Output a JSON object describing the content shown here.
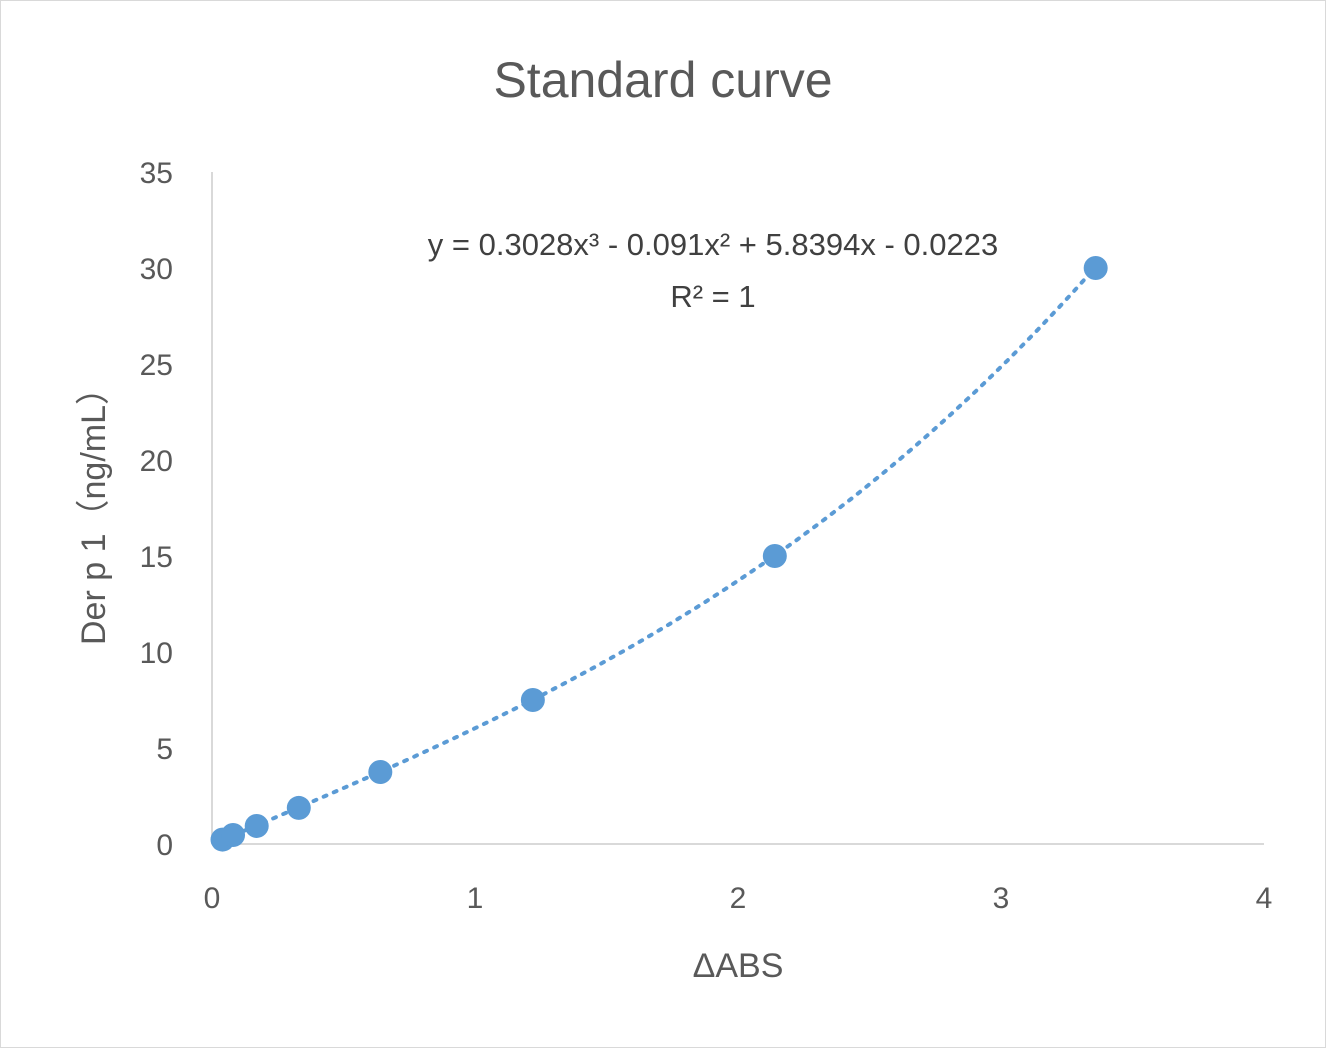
{
  "chart_data": {
    "type": "scatter",
    "title": "Standard curve",
    "xlabel": "ΔABS",
    "ylabel": "Der p 1（ng/mL）",
    "xlim": [
      0,
      4
    ],
    "ylim": [
      0,
      35
    ],
    "x_ticks": [
      "0",
      "1",
      "2",
      "3",
      "4"
    ],
    "y_ticks": [
      "0",
      "5",
      "10",
      "15",
      "20",
      "25",
      "30",
      "35"
    ],
    "grid": false,
    "legend": "none",
    "series": [
      {
        "color": "#5B9BD5",
        "points": [
          {
            "x": 0.04,
            "y": 0.23
          },
          {
            "x": 0.08,
            "y": 0.47
          },
          {
            "x": 0.17,
            "y": 0.94
          },
          {
            "x": 0.33,
            "y": 1.88
          },
          {
            "x": 0.64,
            "y": 3.75
          },
          {
            "x": 1.22,
            "y": 7.5
          },
          {
            "x": 2.14,
            "y": 15
          },
          {
            "x": 3.36,
            "y": 30
          }
        ]
      }
    ],
    "trendline": {
      "type": "polynomial",
      "style": "dotted",
      "color": "#5B9BD5",
      "coefficients": [
        0.3028,
        -0.091,
        5.8394,
        -0.0223
      ],
      "x_range": [
        0.04,
        3.36
      ],
      "equation": "y = 0.3028x³ - 0.091x² + 5.8394x - 0.0223",
      "r_squared": "R² = 1"
    }
  }
}
